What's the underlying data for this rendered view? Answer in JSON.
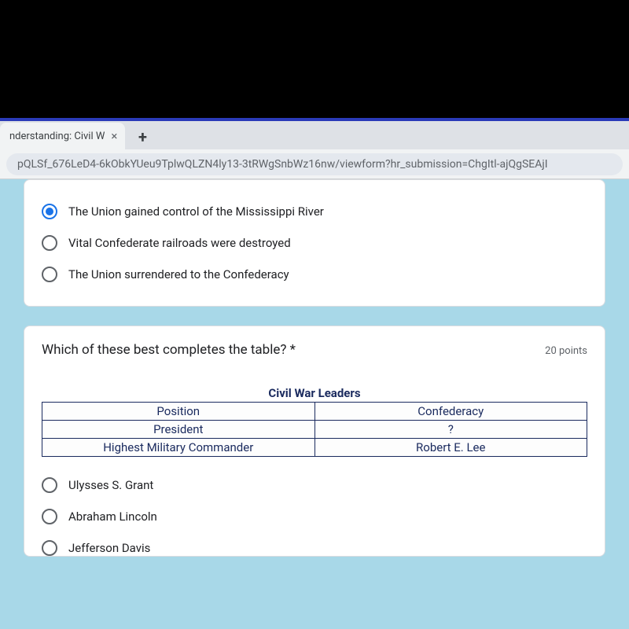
{
  "tab": {
    "title": "nderstanding: Civil W"
  },
  "url": "pQLSf_676LeD4-6kObkYUeu9TplwQLZN4ly13-3tRWgSnbWz16nw/viewform?hr_submission=ChgItl-ajQgSEAjI",
  "question1": {
    "options": [
      {
        "label": "The Union gained control of the Mississippi River",
        "selected": true
      },
      {
        "label": "Vital Confederate railroads were destroyed",
        "selected": false
      },
      {
        "label": "The Union surrendered to the Confederacy",
        "selected": false
      }
    ]
  },
  "question2": {
    "prompt": "Which of these best completes the table? *",
    "points": "20 points",
    "table_title": "Civil War Leaders",
    "table": {
      "header": [
        "Position",
        "Confederacy"
      ],
      "rows": [
        [
          "President",
          "?"
        ],
        [
          "Highest Military Commander",
          "Robert E. Lee"
        ]
      ]
    },
    "options": [
      {
        "label": "Ulysses S. Grant",
        "selected": false
      },
      {
        "label": "Abraham Lincoln",
        "selected": false
      },
      {
        "label": "Jefferson Davis",
        "selected": false
      }
    ]
  }
}
